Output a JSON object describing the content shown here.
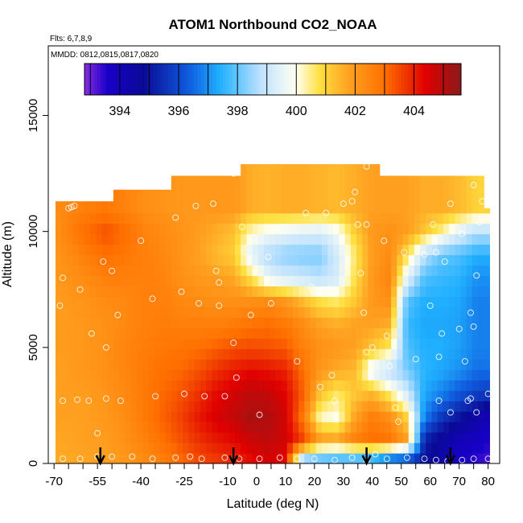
{
  "chart_data": {
    "type": "heatmap",
    "title": "ATOM1 Northbound CO2_NOAA",
    "annotations": [
      "Flts: 6,7,8,9",
      "MMDD: 0812,0815,0817,0820"
    ],
    "xlabel": "Latitude (deg N)",
    "ylabel": "Altitude (m)",
    "xlim": [
      -72,
      84
    ],
    "ylim": [
      0,
      18000
    ],
    "x_ticks": [
      -70,
      -55,
      -40,
      -25,
      -10,
      0,
      10,
      20,
      30,
      40,
      50,
      60,
      70,
      80
    ],
    "x_ticklabels": [
      "-70",
      "-55",
      "-40",
      "-25",
      "-10",
      "0",
      "10",
      "20",
      "30",
      "40",
      "50",
      "60",
      "70",
      "80"
    ],
    "x_minor_ticks": [
      -65,
      -60,
      -50,
      -45,
      -35,
      -30,
      -20,
      -15,
      -5,
      5,
      15,
      25,
      35,
      45,
      55,
      65,
      75
    ],
    "y_ticks": [
      0,
      5000,
      10000,
      15000
    ],
    "y_ticklabels": [
      "0",
      "5000",
      "10000",
      "15000"
    ],
    "colorbar": {
      "range": [
        392.8,
        405.6
      ],
      "ticks": [
        394,
        396,
        398,
        400,
        402,
        404
      ],
      "ticklabels": [
        "394",
        "396",
        "398",
        "400",
        "402",
        "404"
      ],
      "colors": [
        "#8a2be2",
        "#1800c8",
        "#0a0a96",
        "#1060e0",
        "#20b0ff",
        "#bfe2ff",
        "#fffff0",
        "#ffe040",
        "#ffa020",
        "#ff7000",
        "#e00000",
        "#8b1a1a"
      ],
      "color_stops": [
        392.8,
        393.6,
        394.8,
        396.4,
        397.4,
        398.8,
        400.0,
        400.8,
        401.8,
        403.0,
        404.4,
        405.6
      ]
    },
    "bottom_arrows_lat": [
      -54,
      -8,
      38,
      67
    ],
    "grid": false,
    "field_columns": [
      {
        "lat": -69,
        "zmax": 11300,
        "v": [
          401.6,
          401.7,
          401.8,
          401.8,
          401.8,
          401.9,
          401.9,
          401.9,
          402.0,
          402.1,
          402.2,
          402.3
        ]
      },
      {
        "lat": -60,
        "zmax": 11300,
        "v": [
          401.7,
          401.8,
          401.8,
          401.9,
          402.0,
          402.0,
          402.0,
          402.1,
          402.3,
          402.6,
          403.0,
          402.6
        ]
      },
      {
        "lat": -52,
        "zmax": 11300,
        "v": [
          401.8,
          401.9,
          402.0,
          402.1,
          402.2,
          402.2,
          402.2,
          402.3,
          402.6,
          403.0,
          403.4,
          402.8
        ]
      },
      {
        "lat": -45,
        "zmax": 11800,
        "v": [
          402.0,
          402.2,
          402.3,
          402.4,
          402.5,
          402.5,
          402.4,
          402.4,
          402.6,
          402.8,
          403.0,
          402.5
        ]
      },
      {
        "lat": -38,
        "zmax": 11800,
        "v": [
          402.3,
          402.6,
          402.8,
          402.8,
          402.8,
          402.7,
          402.6,
          402.6,
          402.6,
          402.6,
          402.5,
          402.2
        ]
      },
      {
        "lat": -32,
        "zmax": 11800,
        "v": [
          402.6,
          403.0,
          403.2,
          403.1,
          403.0,
          402.8,
          402.7,
          402.6,
          402.5,
          402.4,
          402.3,
          402.1
        ]
      },
      {
        "lat": -26,
        "zmax": 12400,
        "v": [
          403.0,
          403.4,
          403.6,
          403.4,
          403.1,
          402.9,
          402.6,
          402.4,
          402.2,
          402.1,
          402.1,
          402.0
        ]
      },
      {
        "lat": -20,
        "zmax": 12400,
        "v": [
          403.4,
          403.8,
          404.1,
          403.8,
          403.4,
          403.0,
          402.6,
          402.3,
          402.0,
          401.8,
          401.9,
          402.0
        ]
      },
      {
        "lat": -14,
        "zmax": 12400,
        "v": [
          403.6,
          404.1,
          404.5,
          404.3,
          403.8,
          403.2,
          402.6,
          402.2,
          401.9,
          401.4,
          401.6,
          402.0
        ]
      },
      {
        "lat": -8,
        "zmax": 12400,
        "v": [
          403.8,
          404.3,
          404.8,
          404.6,
          404.1,
          403.4,
          402.7,
          402.2,
          401.7,
          401.1,
          401.3,
          402.0
        ]
      },
      {
        "lat": -2,
        "zmax": 12900,
        "v": [
          404.2,
          404.7,
          405.2,
          404.9,
          404.3,
          403.5,
          402.9,
          402.2,
          400.8,
          399.4,
          400.2,
          401.6
        ]
      },
      {
        "lat": 4,
        "zmax": 12900,
        "v": [
          404.5,
          404.9,
          405.1,
          404.8,
          404.2,
          403.4,
          403.0,
          402.3,
          399.6,
          398.6,
          399.8,
          401.5
        ]
      },
      {
        "lat": 10,
        "zmax": 12900,
        "v": [
          404.3,
          404.6,
          404.6,
          404.4,
          404.0,
          403.3,
          402.8,
          402.0,
          399.2,
          398.3,
          399.6,
          401.6
        ]
      },
      {
        "lat": 16,
        "zmax": 12900,
        "v": [
          397.2,
          403.6,
          402.8,
          403.2,
          403.0,
          402.6,
          402.3,
          401.4,
          399.0,
          398.2,
          399.4,
          401.6
        ]
      },
      {
        "lat": 22,
        "zmax": 12900,
        "v": [
          397.0,
          401.9,
          400.2,
          401.2,
          402.0,
          402.2,
          401.8,
          400.8,
          398.8,
          398.2,
          399.3,
          401.5
        ]
      },
      {
        "lat": 28,
        "zmax": 12900,
        "v": [
          396.8,
          401.8,
          400.0,
          400.6,
          401.6,
          402.0,
          401.6,
          400.6,
          399.2,
          399.2,
          399.8,
          401.4
        ]
      },
      {
        "lat": 34,
        "zmax": 12900,
        "v": [
          396.6,
          402.6,
          401.8,
          401.2,
          401.4,
          401.8,
          401.8,
          401.2,
          400.8,
          400.6,
          401.1,
          401.6
        ]
      },
      {
        "lat": 40,
        "zmax": 12900,
        "v": [
          396.2,
          403.0,
          402.7,
          401.5,
          399.4,
          401.2,
          401.8,
          402.0,
          402.0,
          401.9,
          402.0,
          401.8
        ]
      },
      {
        "lat": 46,
        "zmax": 12400,
        "v": [
          395.2,
          402.9,
          402.2,
          400.6,
          398.8,
          400.6,
          401.6,
          402.2,
          402.5,
          402.3,
          402.2,
          401.8
        ]
      },
      {
        "lat": 52,
        "zmax": 12400,
        "v": [
          395.0,
          401.8,
          401.0,
          399.2,
          398.2,
          397.8,
          397.6,
          397.9,
          399.4,
          400.8,
          401.9,
          401.8
        ]
      },
      {
        "lat": 58,
        "zmax": 12400,
        "v": [
          394.9,
          395.2,
          396.8,
          397.3,
          397.5,
          397.4,
          397.3,
          397.4,
          397.8,
          398.8,
          401.2,
          401.6
        ]
      },
      {
        "lat": 64,
        "zmax": 12400,
        "v": [
          394.5,
          394.5,
          395.6,
          396.8,
          397.3,
          397.4,
          397.3,
          397.4,
          397.6,
          398.0,
          400.4,
          401.6
        ]
      },
      {
        "lat": 70,
        "zmax": 12400,
        "v": [
          393.6,
          394.0,
          395.0,
          396.2,
          397.0,
          397.2,
          397.2,
          397.3,
          397.5,
          397.8,
          399.4,
          401.4
        ]
      },
      {
        "lat": 76,
        "zmax": 12400,
        "v": [
          393.4,
          393.8,
          394.4,
          395.8,
          396.6,
          396.8,
          396.8,
          396.8,
          397.0,
          397.4,
          398.8,
          401.0
        ]
      },
      {
        "lat": 80,
        "zmax": 11000,
        "v": [
          393.2,
          393.6,
          394.0,
          395.6,
          396.6,
          396.8,
          396.8,
          396.8,
          397.0,
          397.4,
          398.8,
          401.0
        ]
      }
    ],
    "samples": [
      {
        "x": -68,
        "y": 6800
      },
      {
        "x": -67,
        "y": 8000
      },
      {
        "x": -65,
        "y": 11000
      },
      {
        "x": -64,
        "y": 11050
      },
      {
        "x": -63,
        "y": 11100
      },
      {
        "x": -61,
        "y": 7500
      },
      {
        "x": -67,
        "y": 2700
      },
      {
        "x": -62,
        "y": 2750
      },
      {
        "x": -58,
        "y": 2700
      },
      {
        "x": -57,
        "y": 5600
      },
      {
        "x": -55,
        "y": 1300
      },
      {
        "x": -53,
        "y": 8700
      },
      {
        "x": -52,
        "y": 5000
      },
      {
        "x": -50,
        "y": 8300
      },
      {
        "x": -48,
        "y": 6400
      },
      {
        "x": -52,
        "y": 2800
      },
      {
        "x": -47,
        "y": 2700
      },
      {
        "x": -40,
        "y": 9600
      },
      {
        "x": -36,
        "y": 7100
      },
      {
        "x": -35,
        "y": 2900
      },
      {
        "x": -28,
        "y": 10600
      },
      {
        "x": -26,
        "y": 7400
      },
      {
        "x": -25,
        "y": 3000
      },
      {
        "x": -21,
        "y": 11100
      },
      {
        "x": -20,
        "y": 6900
      },
      {
        "x": -18,
        "y": 2900
      },
      {
        "x": -15,
        "y": 11200
      },
      {
        "x": -14,
        "y": 8300
      },
      {
        "x": -13,
        "y": 7800
      },
      {
        "x": -13,
        "y": 6800
      },
      {
        "x": -11,
        "y": 2900
      },
      {
        "x": -8,
        "y": 12500
      },
      {
        "x": -8,
        "y": 5200
      },
      {
        "x": -7,
        "y": 3700
      },
      {
        "x": -5,
        "y": 10200
      },
      {
        "x": -2,
        "y": 6400
      },
      {
        "x": 1,
        "y": 2100
      },
      {
        "x": 4,
        "y": 8900
      },
      {
        "x": 5,
        "y": 6900
      },
      {
        "x": 14,
        "y": 4400
      },
      {
        "x": 17,
        "y": 10800
      },
      {
        "x": 19,
        "y": 7600
      },
      {
        "x": 21,
        "y": 7400
      },
      {
        "x": 22,
        "y": 3300
      },
      {
        "x": 24,
        "y": 10800
      },
      {
        "x": 26,
        "y": 3800
      },
      {
        "x": 27,
        "y": 2700
      },
      {
        "x": 27,
        "y": 1900
      },
      {
        "x": 30,
        "y": 11200
      },
      {
        "x": 33,
        "y": 11300
      },
      {
        "x": 34,
        "y": 11700
      },
      {
        "x": 35,
        "y": 10300
      },
      {
        "x": 36,
        "y": 8200
      },
      {
        "x": 37,
        "y": 6500
      },
      {
        "x": 38,
        "y": 10300
      },
      {
        "x": 38,
        "y": 12800
      },
      {
        "x": 38,
        "y": 4800
      },
      {
        "x": 40,
        "y": 5000
      },
      {
        "x": 41,
        "y": 400
      },
      {
        "x": 44,
        "y": 9600
      },
      {
        "x": 45,
        "y": 5500
      },
      {
        "x": 46,
        "y": 4200
      },
      {
        "x": 48,
        "y": 2400
      },
      {
        "x": 49,
        "y": 1800
      },
      {
        "x": 51,
        "y": 9100
      },
      {
        "x": 55,
        "y": 4500
      },
      {
        "x": 58,
        "y": 9000
      },
      {
        "x": 60,
        "y": 6800
      },
      {
        "x": 61,
        "y": 10300
      },
      {
        "x": 62,
        "y": 9100
      },
      {
        "x": 63,
        "y": 4600
      },
      {
        "x": 63,
        "y": 2700
      },
      {
        "x": 64,
        "y": 5600
      },
      {
        "x": 65,
        "y": 8700
      },
      {
        "x": 67,
        "y": 11200
      },
      {
        "x": 67,
        "y": 2200
      },
      {
        "x": 70,
        "y": 5800
      },
      {
        "x": 71,
        "y": 9900
      },
      {
        "x": 72,
        "y": 4400
      },
      {
        "x": 73,
        "y": 2700
      },
      {
        "x": 74,
        "y": 6500
      },
      {
        "x": 74,
        "y": 2800
      },
      {
        "x": 75,
        "y": 5900
      },
      {
        "x": 75,
        "y": 12000
      },
      {
        "x": 76,
        "y": 8100
      },
      {
        "x": 76,
        "y": 2200
      },
      {
        "x": 77,
        "y": 10400
      },
      {
        "x": 78,
        "y": 11300
      },
      {
        "x": 80,
        "y": 3000
      },
      {
        "x": 79,
        "y": 10600
      },
      {
        "x": -67,
        "y": 200
      },
      {
        "x": -61,
        "y": 200
      },
      {
        "x": -55,
        "y": 300
      },
      {
        "x": -50,
        "y": 300
      },
      {
        "x": -43,
        "y": 300
      },
      {
        "x": -36,
        "y": 200
      },
      {
        "x": -28,
        "y": 250
      },
      {
        "x": -23,
        "y": 300
      },
      {
        "x": -19,
        "y": 200
      },
      {
        "x": -11,
        "y": 250
      },
      {
        "x": -6,
        "y": 200
      },
      {
        "x": 1,
        "y": 200
      },
      {
        "x": 8,
        "y": 250
      },
      {
        "x": 14,
        "y": 200
      },
      {
        "x": 20,
        "y": 200
      },
      {
        "x": 27,
        "y": 150
      },
      {
        "x": 33,
        "y": 250
      },
      {
        "x": 38,
        "y": 100
      },
      {
        "x": 45,
        "y": 200
      },
      {
        "x": 52,
        "y": 250
      },
      {
        "x": 58,
        "y": 200
      },
      {
        "x": 62,
        "y": 150
      },
      {
        "x": 66,
        "y": 100
      },
      {
        "x": 71,
        "y": 150
      },
      {
        "x": 75,
        "y": 200
      },
      {
        "x": 80,
        "y": 200
      }
    ]
  }
}
